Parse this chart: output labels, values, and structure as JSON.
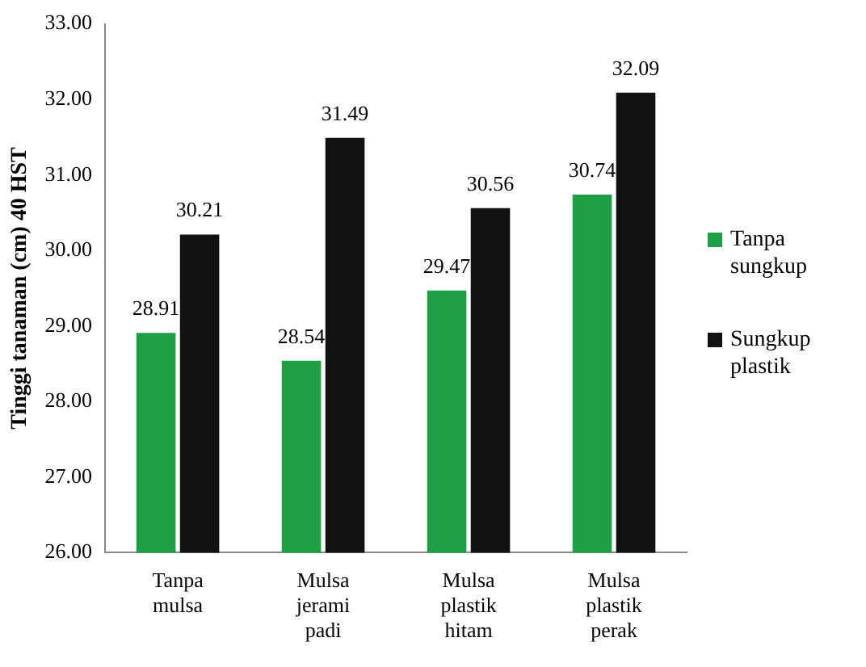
{
  "chart_data": {
    "type": "bar",
    "ylabel": "Tinggi tanaman (cm) 40 HST",
    "categories": [
      "Tanpa mulsa",
      "Mulsa jerami padi",
      "Mulsa plastik hitam",
      "Mulsa plastik perak"
    ],
    "series": [
      {
        "name": "Tanpa sungkup",
        "color": "#1e9e45",
        "values": [
          28.91,
          28.54,
          29.47,
          30.74
        ]
      },
      {
        "name": "Sungkup plastik",
        "color": "#111111",
        "values": [
          30.21,
          31.49,
          30.56,
          32.09
        ]
      }
    ],
    "ylim": [
      26,
      33
    ],
    "yticks": [
      {
        "value": 26,
        "label": "26.00"
      },
      {
        "value": 27,
        "label": "27.00"
      },
      {
        "value": 28,
        "label": "28.00"
      },
      {
        "value": 29,
        "label": "29.00"
      },
      {
        "value": 30,
        "label": "30.00"
      },
      {
        "value": 31,
        "label": "31.00"
      },
      {
        "value": 32,
        "label": "32.00"
      },
      {
        "value": 33,
        "label": "33.00"
      }
    ],
    "data_labels": true,
    "grid": false,
    "legend": "right"
  }
}
